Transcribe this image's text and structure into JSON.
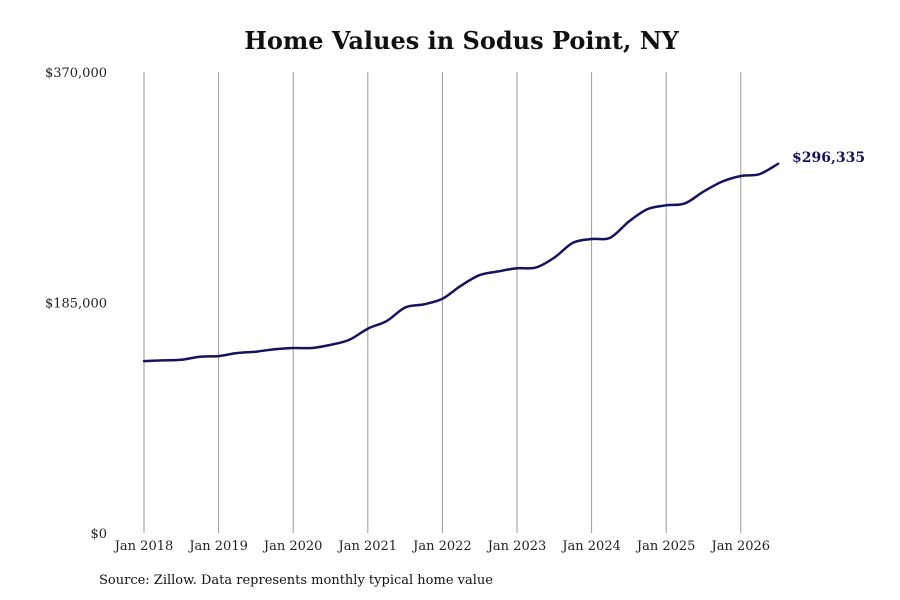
{
  "chart_data": {
    "type": "line",
    "title": "Home Values in Sodus Point, NY",
    "xlabel": "",
    "ylabel": "",
    "x_tick_labels": [
      "Jan 2018",
      "Jan 2019",
      "Jan 2020",
      "Jan 2021",
      "Jan 2022",
      "Jan 2023",
      "Jan 2024",
      "Jan 2025",
      "Jan 2026"
    ],
    "y_tick_labels": [
      "$0",
      "$185,000",
      "$370,000"
    ],
    "y_ticks": [
      0,
      185000,
      370000
    ],
    "ylim": [
      0,
      370000
    ],
    "grid": "vertical",
    "line_color": "#14145e",
    "series": [
      {
        "x": [
          "2018-01",
          "2018-04",
          "2018-07",
          "2018-10",
          "2019-01",
          "2019-04",
          "2019-07",
          "2019-10",
          "2020-01",
          "2020-04",
          "2020-07",
          "2020-10",
          "2021-01",
          "2021-04",
          "2021-07",
          "2021-10",
          "2022-01",
          "2022-04",
          "2022-07",
          "2022-10",
          "2023-01",
          "2023-04",
          "2023-07",
          "2023-10",
          "2024-01",
          "2024-04",
          "2024-07",
          "2024-10",
          "2025-01",
          "2025-04",
          "2025-07",
          "2025-10",
          "2026-01",
          "2026-04",
          "2026-07"
        ],
        "y": [
          138000,
          138500,
          139000,
          141500,
          142000,
          144500,
          145500,
          147500,
          148500,
          148500,
          151000,
          155000,
          164000,
          170000,
          181000,
          183500,
          188000,
          198500,
          207000,
          210000,
          212500,
          213000,
          221000,
          233000,
          236000,
          237000,
          250000,
          260000,
          263000,
          264500,
          274000,
          282000,
          286500,
          288000,
          296335
        ]
      }
    ],
    "end_label": "$296,335",
    "source": "Source: Zillow. Data represents monthly typical home value"
  }
}
